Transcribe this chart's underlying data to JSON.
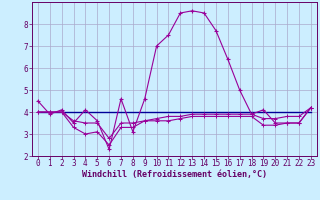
{
  "xlabel": "Windchill (Refroidissement éolien,°C)",
  "background_color": "#cceeff",
  "grid_color": "#aaaacc",
  "line_color": "#990099",
  "blue_color": "#000099",
  "x": [
    0,
    1,
    2,
    3,
    4,
    5,
    6,
    7,
    8,
    9,
    10,
    11,
    12,
    13,
    14,
    15,
    16,
    17,
    18,
    19,
    20,
    21,
    22,
    23
  ],
  "line1": [
    4.5,
    3.9,
    4.1,
    3.5,
    4.1,
    3.6,
    2.3,
    4.6,
    3.1,
    4.6,
    7.0,
    7.5,
    8.5,
    8.6,
    8.5,
    7.7,
    6.4,
    5.0,
    3.9,
    4.1,
    3.5,
    3.5,
    3.5,
    4.2
  ],
  "line2": [
    4.0,
    4.0,
    4.0,
    3.3,
    3.0,
    3.1,
    2.5,
    3.3,
    3.3,
    3.6,
    3.6,
    3.6,
    3.7,
    3.8,
    3.8,
    3.8,
    3.8,
    3.8,
    3.8,
    3.4,
    3.4,
    3.5,
    3.5,
    4.2
  ],
  "line3": [
    4.0,
    4.0,
    4.0,
    4.0,
    4.0,
    4.0,
    4.0,
    4.0,
    4.0,
    4.0,
    4.0,
    4.0,
    4.0,
    4.0,
    4.0,
    4.0,
    4.0,
    4.0,
    4.0,
    4.0,
    4.0,
    4.0,
    4.0,
    4.0
  ],
  "line4": [
    4.0,
    4.0,
    4.0,
    3.6,
    3.5,
    3.5,
    2.8,
    3.5,
    3.5,
    3.6,
    3.7,
    3.8,
    3.8,
    3.9,
    3.9,
    3.9,
    3.9,
    3.9,
    3.9,
    3.7,
    3.7,
    3.8,
    3.8,
    4.2
  ],
  "ylim": [
    2.0,
    9.0
  ],
  "xlim": [
    -0.5,
    23.5
  ],
  "yticks": [
    2,
    3,
    4,
    5,
    6,
    7,
    8
  ],
  "xticks": [
    0,
    1,
    2,
    3,
    4,
    5,
    6,
    7,
    8,
    9,
    10,
    11,
    12,
    13,
    14,
    15,
    16,
    17,
    18,
    19,
    20,
    21,
    22,
    23
  ],
  "tick_fontsize": 5.5,
  "label_fontsize": 6.0
}
